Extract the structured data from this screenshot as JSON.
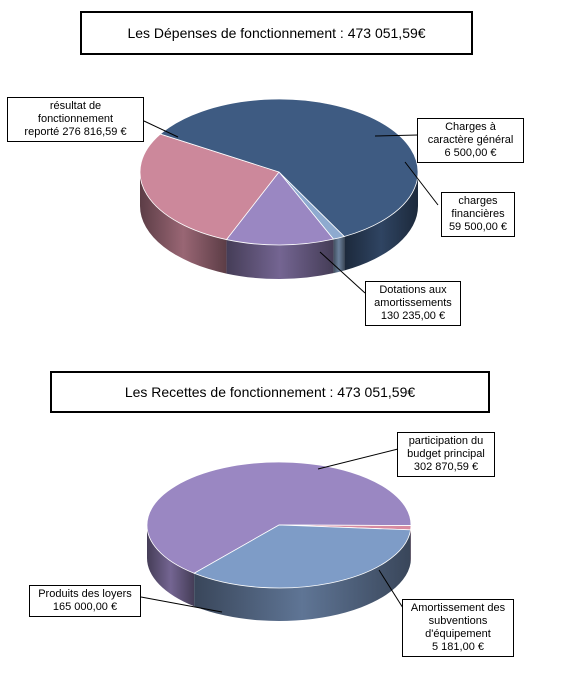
{
  "chart_data": [
    {
      "type": "pie",
      "title": "Les Dépenses de fonctionnement : 473 051,59€",
      "slices": [
        {
          "label": "Charges à caractère général",
          "value": 6500.0,
          "value_text": "6 500,00 €",
          "label_lines": [
            "Charges à",
            "caractère général",
            "6 500,00 €"
          ],
          "color": "#8EAACF"
        },
        {
          "label": "charges financières",
          "value": 59500.0,
          "value_text": "59 500,00 €",
          "label_lines": [
            "charges",
            "financières",
            "59 500,00 €"
          ],
          "color": "#9A87C2"
        },
        {
          "label": "Dotations aux amortissements",
          "value": 130235.0,
          "value_text": "130 235,00 €",
          "label_lines": [
            "Dotations aux",
            "amortissements",
            "130 235,00 €"
          ],
          "color": "#CC889B"
        },
        {
          "label": "résultat de fonctionnement reporté",
          "value": 276816.59,
          "value_text": "276 816,59 €",
          "label_lines": [
            "résultat de",
            "fonctionnement",
            "reporté 276 816,59 €"
          ],
          "color": "#3E5B82"
        }
      ]
    },
    {
      "type": "pie",
      "title": "Les Recettes de fonctionnement : 473 051,59€",
      "slices": [
        {
          "label": "participation du budget principal",
          "value": 302870.59,
          "value_text": "302 870,59 €",
          "label_lines": [
            "participation du",
            "budget principal",
            "302 870,59 €"
          ],
          "color": "#9A87C2"
        },
        {
          "label": "Amortissement des subventions d'équipement",
          "value": 5181.0,
          "value_text": "5 181,00 €",
          "label_lines": [
            "Amortissement des",
            "subventions",
            "d'équipement",
            "5 181,00 €"
          ],
          "color": "#D88BA0"
        },
        {
          "label": "Produits des loyers",
          "value": 165000.0,
          "value_text": "165 000,00 €",
          "label_lines": [
            "Produits des loyers",
            "165 000,00 €"
          ],
          "color": "#7E9CC7"
        }
      ]
    }
  ]
}
